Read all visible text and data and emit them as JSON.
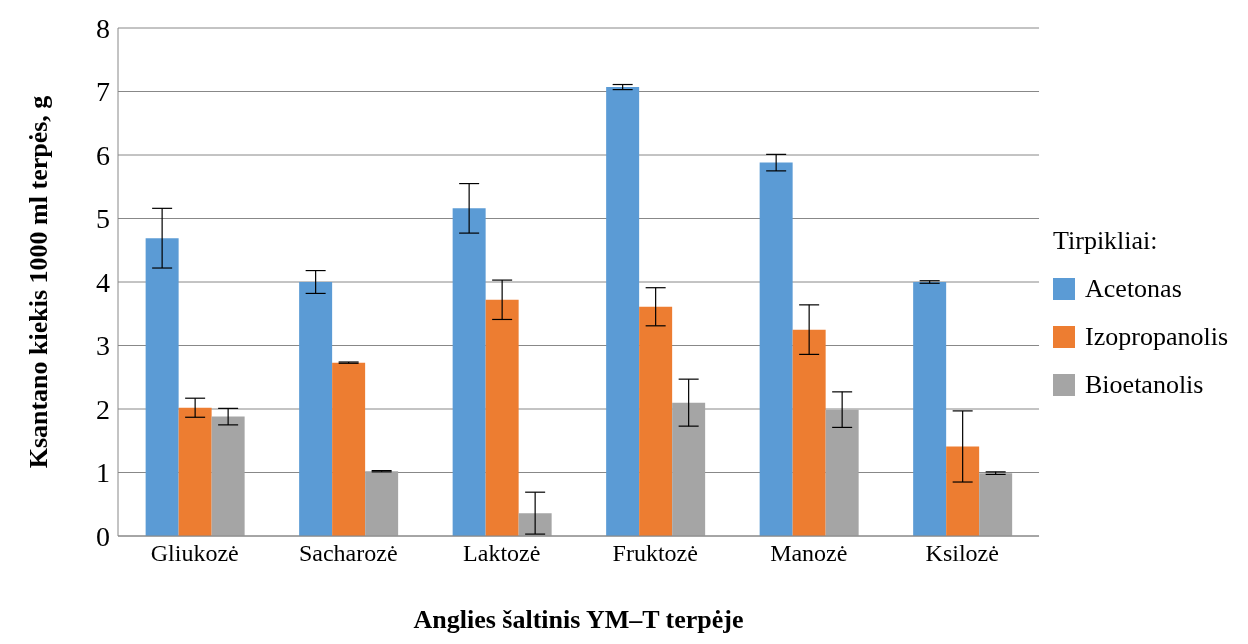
{
  "chart_data": {
    "type": "bar",
    "xlabel": "Anglies šaltinis YM–T terpėje",
    "ylabel": "Ksantano kiekis 1000 ml terpės, g",
    "legend_title": "Tirpikliai:",
    "legend": "right",
    "grid": "y",
    "categories": [
      "Gliukozė",
      "Sacharozė",
      "Laktozė",
      "Fruktozė",
      "Manozė",
      "Ksilozė"
    ],
    "ylim": [
      0,
      8
    ],
    "yticks": [
      0,
      1,
      2,
      3,
      4,
      5,
      6,
      7,
      8
    ],
    "series": [
      {
        "name": "Acetonas",
        "color": "#5b9bd5",
        "values": [
          4.69,
          4.0,
          5.16,
          7.07,
          5.88,
          4.0
        ],
        "errors": [
          0.47,
          0.18,
          0.39,
          0.04,
          0.13,
          0.02
        ]
      },
      {
        "name": "Izopropanolis",
        "color": "#ed7d31",
        "values": [
          2.02,
          2.73,
          3.72,
          3.61,
          3.25,
          1.41
        ],
        "errors": [
          0.15,
          0.01,
          0.31,
          0.3,
          0.39,
          0.56
        ]
      },
      {
        "name": "Bioetanolis",
        "color": "#a5a5a5",
        "values": [
          1.88,
          1.02,
          0.36,
          2.1,
          1.99,
          0.99
        ],
        "errors": [
          0.13,
          0.01,
          0.33,
          0.37,
          0.28,
          0.02
        ]
      }
    ]
  }
}
